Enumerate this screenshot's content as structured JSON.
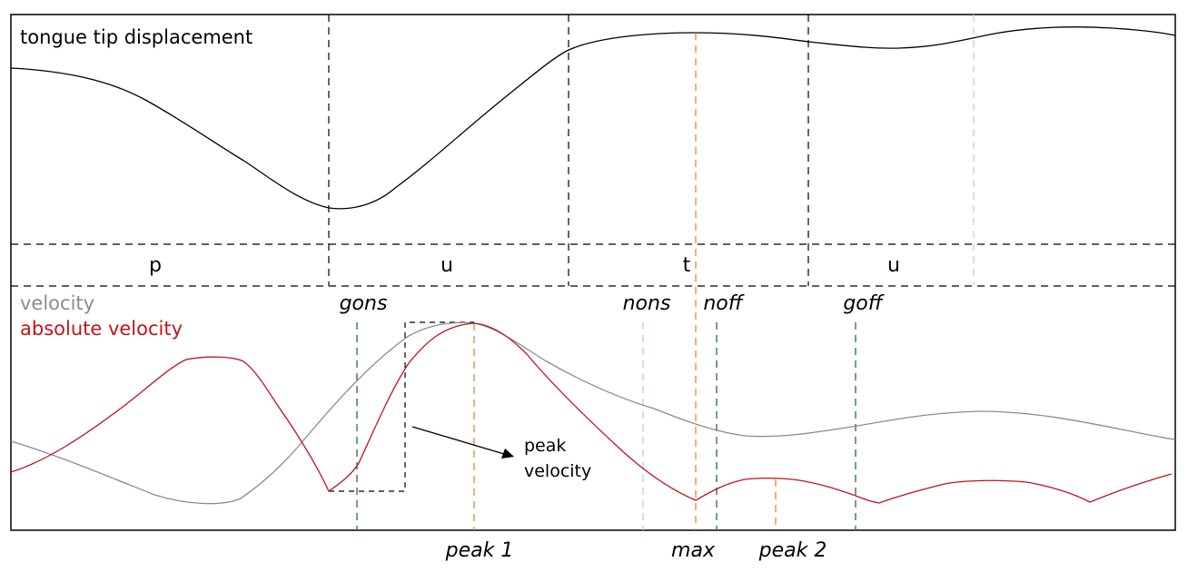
{
  "title_top": "tongue tip displacement",
  "legend": {
    "velocity": "velocity",
    "absolute_velocity": "absolute velocity"
  },
  "segments": [
    "p",
    "u",
    "t",
    "u"
  ],
  "landmarks": {
    "gons": "gons",
    "nons": "nons",
    "noff": "noff",
    "goff": "goff",
    "peak1": "peak 1",
    "max": "max",
    "peak2": "peak 2"
  },
  "annotation": {
    "line1": "peak",
    "line2": "velocity"
  },
  "colors": {
    "displacement": "#000000",
    "velocity": "#8c8c8c",
    "absolute_velocity": "#c0141e",
    "green_marker": "#1f6e3a",
    "orange_marker": "#e08a2c",
    "pale_teal_marker": "#a9d6cf",
    "pale_gray_marker": "#c8c8c8"
  }
}
